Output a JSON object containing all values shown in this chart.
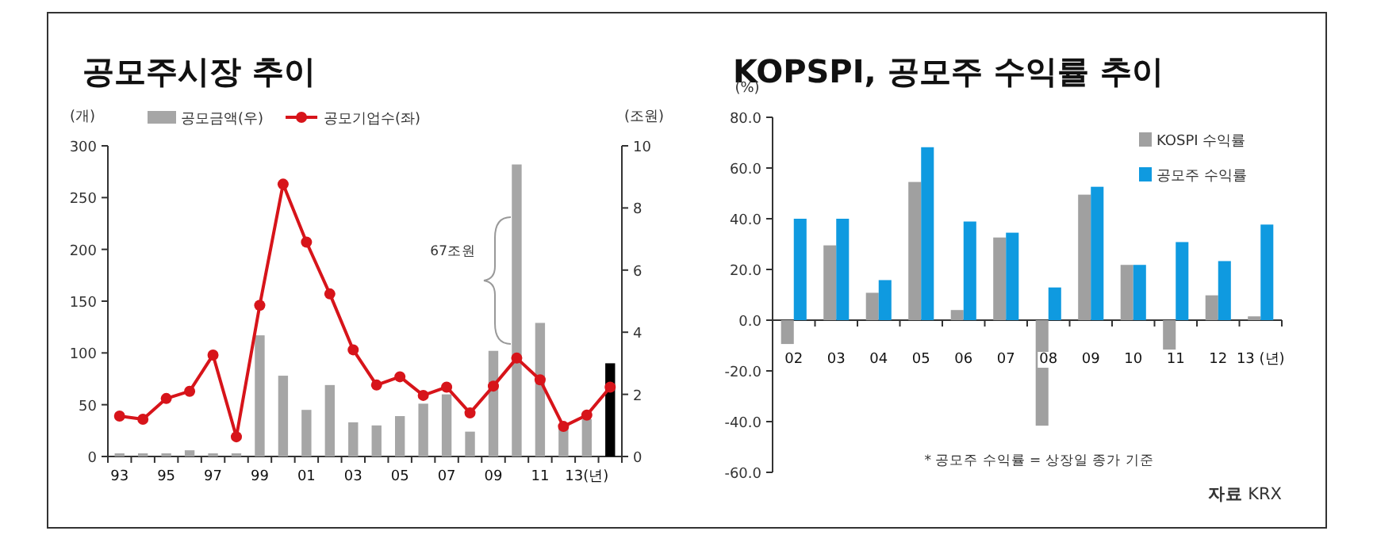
{
  "chart_data": [
    {
      "type": "bar",
      "title": "공모주시장 추이",
      "ylabel": "(개)",
      "y2label": "(조원)",
      "categories": [
        "93",
        null,
        "95",
        null,
        "97",
        null,
        "99",
        null,
        "01",
        null,
        "03",
        null,
        "05",
        null,
        "07",
        null,
        "09",
        null,
        "11",
        null,
        "13(년)",
        null
      ],
      "ylim": [
        0,
        300
      ],
      "yticks": [
        0,
        50,
        100,
        150,
        200,
        250,
        300
      ],
      "y2lim": [
        0,
        10
      ],
      "y2ticks": [
        0,
        2,
        4,
        6,
        8,
        10
      ],
      "legend": "top",
      "marker": "circle",
      "annotations": [
        "67조원"
      ],
      "series": [
        {
          "name": "공모금액(우)",
          "type": "bar",
          "axis": "y2",
          "color": "#a6a6a6",
          "colors": [
            "#a6a6a6",
            "#a6a6a6",
            "#a6a6a6",
            "#a6a6a6",
            "#a6a6a6",
            "#a6a6a6",
            "#a6a6a6",
            "#a6a6a6",
            "#a6a6a6",
            "#a6a6a6",
            "#a6a6a6",
            "#a6a6a6",
            "#a6a6a6",
            "#a6a6a6",
            "#a6a6a6",
            "#a6a6a6",
            "#a6a6a6",
            "#a6a6a6",
            "#a6a6a6",
            "#a6a6a6",
            "#a6a6a6",
            "#000000"
          ],
          "values": [
            0.1,
            0.1,
            0.1,
            0.2,
            0.1,
            0.1,
            3.9,
            2.6,
            1.5,
            2.3,
            1.1,
            1.0,
            1.3,
            1.7,
            2.0,
            0.8,
            3.4,
            9.4,
            4.3,
            0.9,
            1.2,
            3.0
          ]
        },
        {
          "name": "공모기업수(좌)",
          "type": "line",
          "axis": "y",
          "color": "#d7141a",
          "values": [
            39,
            36,
            56,
            63,
            98,
            19,
            146,
            263,
            207,
            157,
            103,
            69,
            77,
            59,
            67,
            42,
            68,
            95,
            74,
            29,
            40,
            67
          ]
        }
      ]
    },
    {
      "type": "bar",
      "title": "KOPSPI, 공모주 수익률 추이",
      "ylabel": "(%)",
      "categories": [
        "02",
        "03",
        "04",
        "05",
        "06",
        "07",
        "08",
        "09",
        "10",
        "11",
        "12",
        "13 (년)"
      ],
      "ylim": [
        -60,
        80
      ],
      "yticks": [
        {
          "value": -60,
          "label": "-60.0"
        },
        {
          "value": -40,
          "label": "-40.0"
        },
        {
          "value": -20,
          "label": "-20.0"
        },
        {
          "value": 0,
          "label": "0.0"
        },
        {
          "value": 20,
          "label": "20.0"
        },
        {
          "value": 40,
          "label": "40.0"
        },
        {
          "value": 60,
          "label": "60.0"
        },
        {
          "value": 80,
          "label": "80.0"
        }
      ],
      "legend": "top right",
      "annotations": [
        "* 공모주 수익률 = 상장일 종가 기준",
        "**자료** KRX"
      ],
      "series": [
        {
          "name": "KOSPI 수익률",
          "color": "#a0a0a0",
          "values": [
            -9.4,
            29.5,
            10.8,
            54.5,
            4.0,
            32.6,
            -41.6,
            49.5,
            21.8,
            -11.6,
            9.8,
            1.5
          ]
        },
        {
          "name": "공모주 수익률",
          "color": "#0f9ae0",
          "values": [
            40.0,
            40.0,
            15.8,
            68.2,
            38.9,
            34.5,
            12.9,
            52.6,
            21.8,
            30.8,
            23.3,
            37.7
          ]
        }
      ]
    }
  ]
}
